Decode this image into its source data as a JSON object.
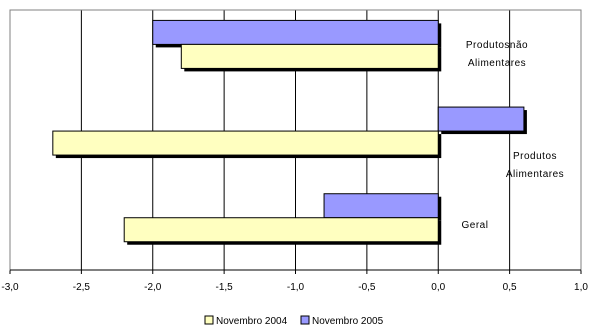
{
  "chart_data": {
    "type": "bar",
    "orientation": "horizontal",
    "categories": [
      {
        "lines": [
          "Produtosnão",
          "Alimentares"
        ]
      },
      {
        "lines": [
          "Produtos",
          "Alimentares"
        ]
      },
      {
        "lines": [
          "Geral"
        ]
      }
    ],
    "series": [
      {
        "name": "Novembro 2004",
        "color": "#ffffc0",
        "values": [
          -1.8,
          -2.7,
          -2.2
        ]
      },
      {
        "name": "Novembro 2005",
        "color": "#9999ff",
        "values": [
          -2.0,
          0.6,
          -0.8
        ]
      }
    ],
    "xlim": [
      -3.0,
      1.0
    ],
    "xticks": [
      "-3,0",
      "-2,5",
      "-2,0",
      "-1,5",
      "-1,0",
      "-0,5",
      "0,0",
      "0,5",
      "1,0"
    ],
    "xtick_values": [
      -3.0,
      -2.5,
      -2.0,
      -1.5,
      -1.0,
      -0.5,
      0.0,
      0.5,
      1.0
    ],
    "grid": "vertical",
    "legend_position": "bottom",
    "title": "",
    "xlabel": "",
    "ylabel": ""
  }
}
